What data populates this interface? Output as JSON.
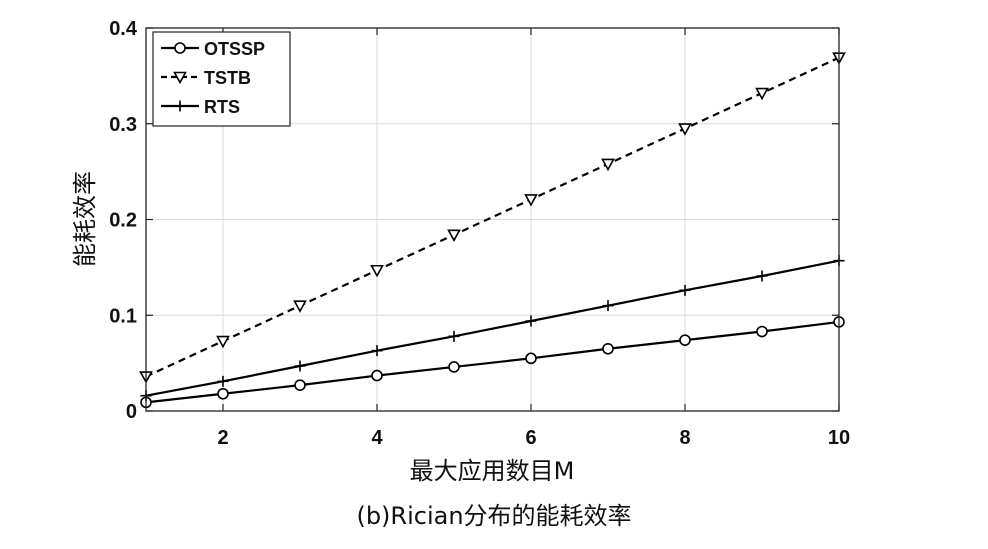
{
  "caption": "(b)Rician分布的能耗效率",
  "chart_data": {
    "type": "line",
    "title": "",
    "xlabel": "最大应用数目M",
    "ylabel": "能耗效率",
    "xlim": [
      1,
      10
    ],
    "ylim": [
      0,
      0.4
    ],
    "xticks": [
      2,
      4,
      6,
      8,
      10
    ],
    "xtick_labels": [
      "2",
      "4",
      "6",
      "8",
      "10"
    ],
    "yticks": [
      0,
      0.1,
      0.2,
      0.3,
      0.4
    ],
    "ytick_labels": [
      "0",
      "0.1",
      "0.2",
      "0.3",
      "0.4"
    ],
    "grid": true,
    "legend_position": "top-left",
    "x": [
      1,
      2,
      3,
      4,
      5,
      6,
      7,
      8,
      9,
      10
    ],
    "series": [
      {
        "name": "OTSSP",
        "marker": "circle",
        "line_style": "solid",
        "color": "#000000",
        "values": [
          0.009,
          0.018,
          0.027,
          0.037,
          0.046,
          0.055,
          0.065,
          0.074,
          0.083,
          0.093
        ]
      },
      {
        "name": "TSTB",
        "marker": "triangle-down",
        "line_style": "dashed",
        "color": "#000000",
        "values": [
          0.036,
          0.073,
          0.11,
          0.147,
          0.184,
          0.221,
          0.258,
          0.295,
          0.332,
          0.369
        ]
      },
      {
        "name": "RTS",
        "marker": "plus",
        "line_style": "solid",
        "color": "#000000",
        "values": [
          0.016,
          0.031,
          0.047,
          0.063,
          0.078,
          0.094,
          0.11,
          0.126,
          0.141,
          0.157
        ]
      }
    ]
  }
}
